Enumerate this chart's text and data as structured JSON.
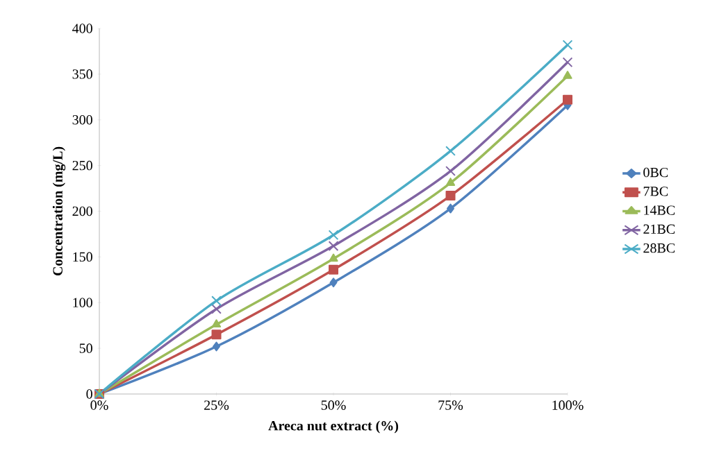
{
  "chart_data": {
    "type": "line",
    "xlabel": "Areca nut extract (%)",
    "ylabel": "Concentration (mg/L)",
    "categories": [
      "0%",
      "25%",
      "50%",
      "75%",
      "100%"
    ],
    "ylim": [
      0,
      400
    ],
    "yticks": [
      0,
      50,
      100,
      150,
      200,
      250,
      300,
      350,
      400
    ],
    "legend": "right",
    "grid": false,
    "series": [
      {
        "name": "0BC",
        "color": "#4f81bd",
        "marker": "diamond",
        "values": [
          0,
          52,
          122,
          203,
          316
        ]
      },
      {
        "name": "7BC",
        "color": "#c0504d",
        "marker": "square",
        "values": [
          0,
          65,
          136,
          217,
          322
        ]
      },
      {
        "name": "14BC",
        "color": "#9bbb59",
        "marker": "triangle",
        "values": [
          0,
          76,
          148,
          231,
          348
        ]
      },
      {
        "name": "21BC",
        "color": "#8064a2",
        "marker": "cross",
        "values": [
          0,
          93,
          162,
          244,
          363
        ]
      },
      {
        "name": "28BC",
        "color": "#4bacc6",
        "marker": "cross",
        "values": [
          0,
          102,
          174,
          266,
          382
        ]
      }
    ]
  }
}
